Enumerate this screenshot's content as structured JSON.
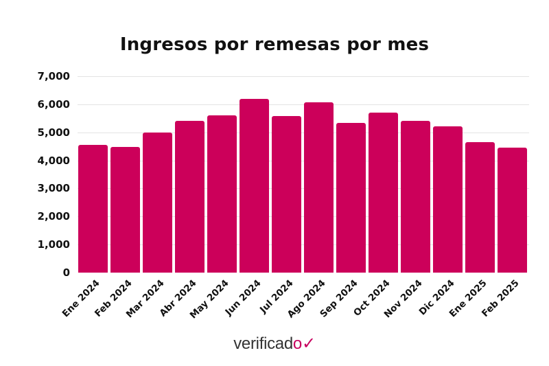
{
  "title": "Ingresos por remesas por mes",
  "logo": {
    "text": "verificad",
    "mark": "o✓"
  },
  "colors": {
    "bar": "#cc005a",
    "grid": "#e3e3e3",
    "text": "#111111"
  },
  "chart_data": {
    "type": "bar",
    "title": "Ingresos por remesas por mes",
    "xlabel": "",
    "ylabel": "",
    "ylim": [
      0,
      7000
    ],
    "yticks": [
      "0",
      "1,000",
      "2,000",
      "3,000",
      "4,000",
      "5,000",
      "6,000",
      "7,000"
    ],
    "grid": true,
    "legend": null,
    "categories": [
      "Ene 2024",
      "Feb 2024",
      "Mar 2024",
      "Abr 2024",
      "May 2024",
      "Jun 2024",
      "Jul 2024",
      "Ago 2024",
      "Sep 2024",
      "Oct 2024",
      "Nov 2024",
      "Dic 2024",
      "Ene 2025",
      "Feb 2025"
    ],
    "values": [
      4560,
      4490,
      5000,
      5410,
      5610,
      6190,
      5580,
      6060,
      5340,
      5710,
      5410,
      5210,
      4650,
      4450
    ]
  }
}
